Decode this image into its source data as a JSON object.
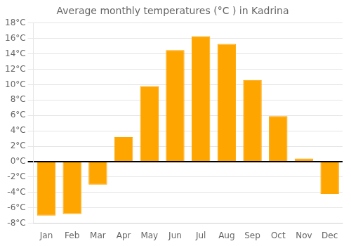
{
  "chart_data": {
    "type": "bar",
    "title": "Average monthly temperatures (°C ) in Kadrina",
    "categories": [
      "Jan",
      "Feb",
      "Mar",
      "Apr",
      "May",
      "Jun",
      "Jul",
      "Aug",
      "Sep",
      "Oct",
      "Nov",
      "Dec"
    ],
    "values": [
      -7.0,
      -6.8,
      -3.0,
      3.2,
      9.8,
      14.5,
      16.3,
      15.3,
      10.6,
      5.9,
      0.4,
      -4.2
    ],
    "color": "#FFA500",
    "ylim": [
      -8,
      18
    ],
    "yticks": [
      {
        "value": -8,
        "label": "-8°C"
      },
      {
        "value": -6,
        "label": "-6°C"
      },
      {
        "value": -4,
        "label": "-4°C"
      },
      {
        "value": -2,
        "label": "-2°C"
      },
      {
        "value": 0,
        "label": "0°C"
      },
      {
        "value": 2,
        "label": "2°C"
      },
      {
        "value": 4,
        "label": "4°C"
      },
      {
        "value": 6,
        "label": "6°C"
      },
      {
        "value": 8,
        "label": "8°C"
      },
      {
        "value": 10,
        "label": "10°C"
      },
      {
        "value": 12,
        "label": "12°C"
      },
      {
        "value": 14,
        "label": "14°C"
      },
      {
        "value": 16,
        "label": "16°C"
      },
      {
        "value": 18,
        "label": "18°C"
      }
    ],
    "grid": true
  }
}
